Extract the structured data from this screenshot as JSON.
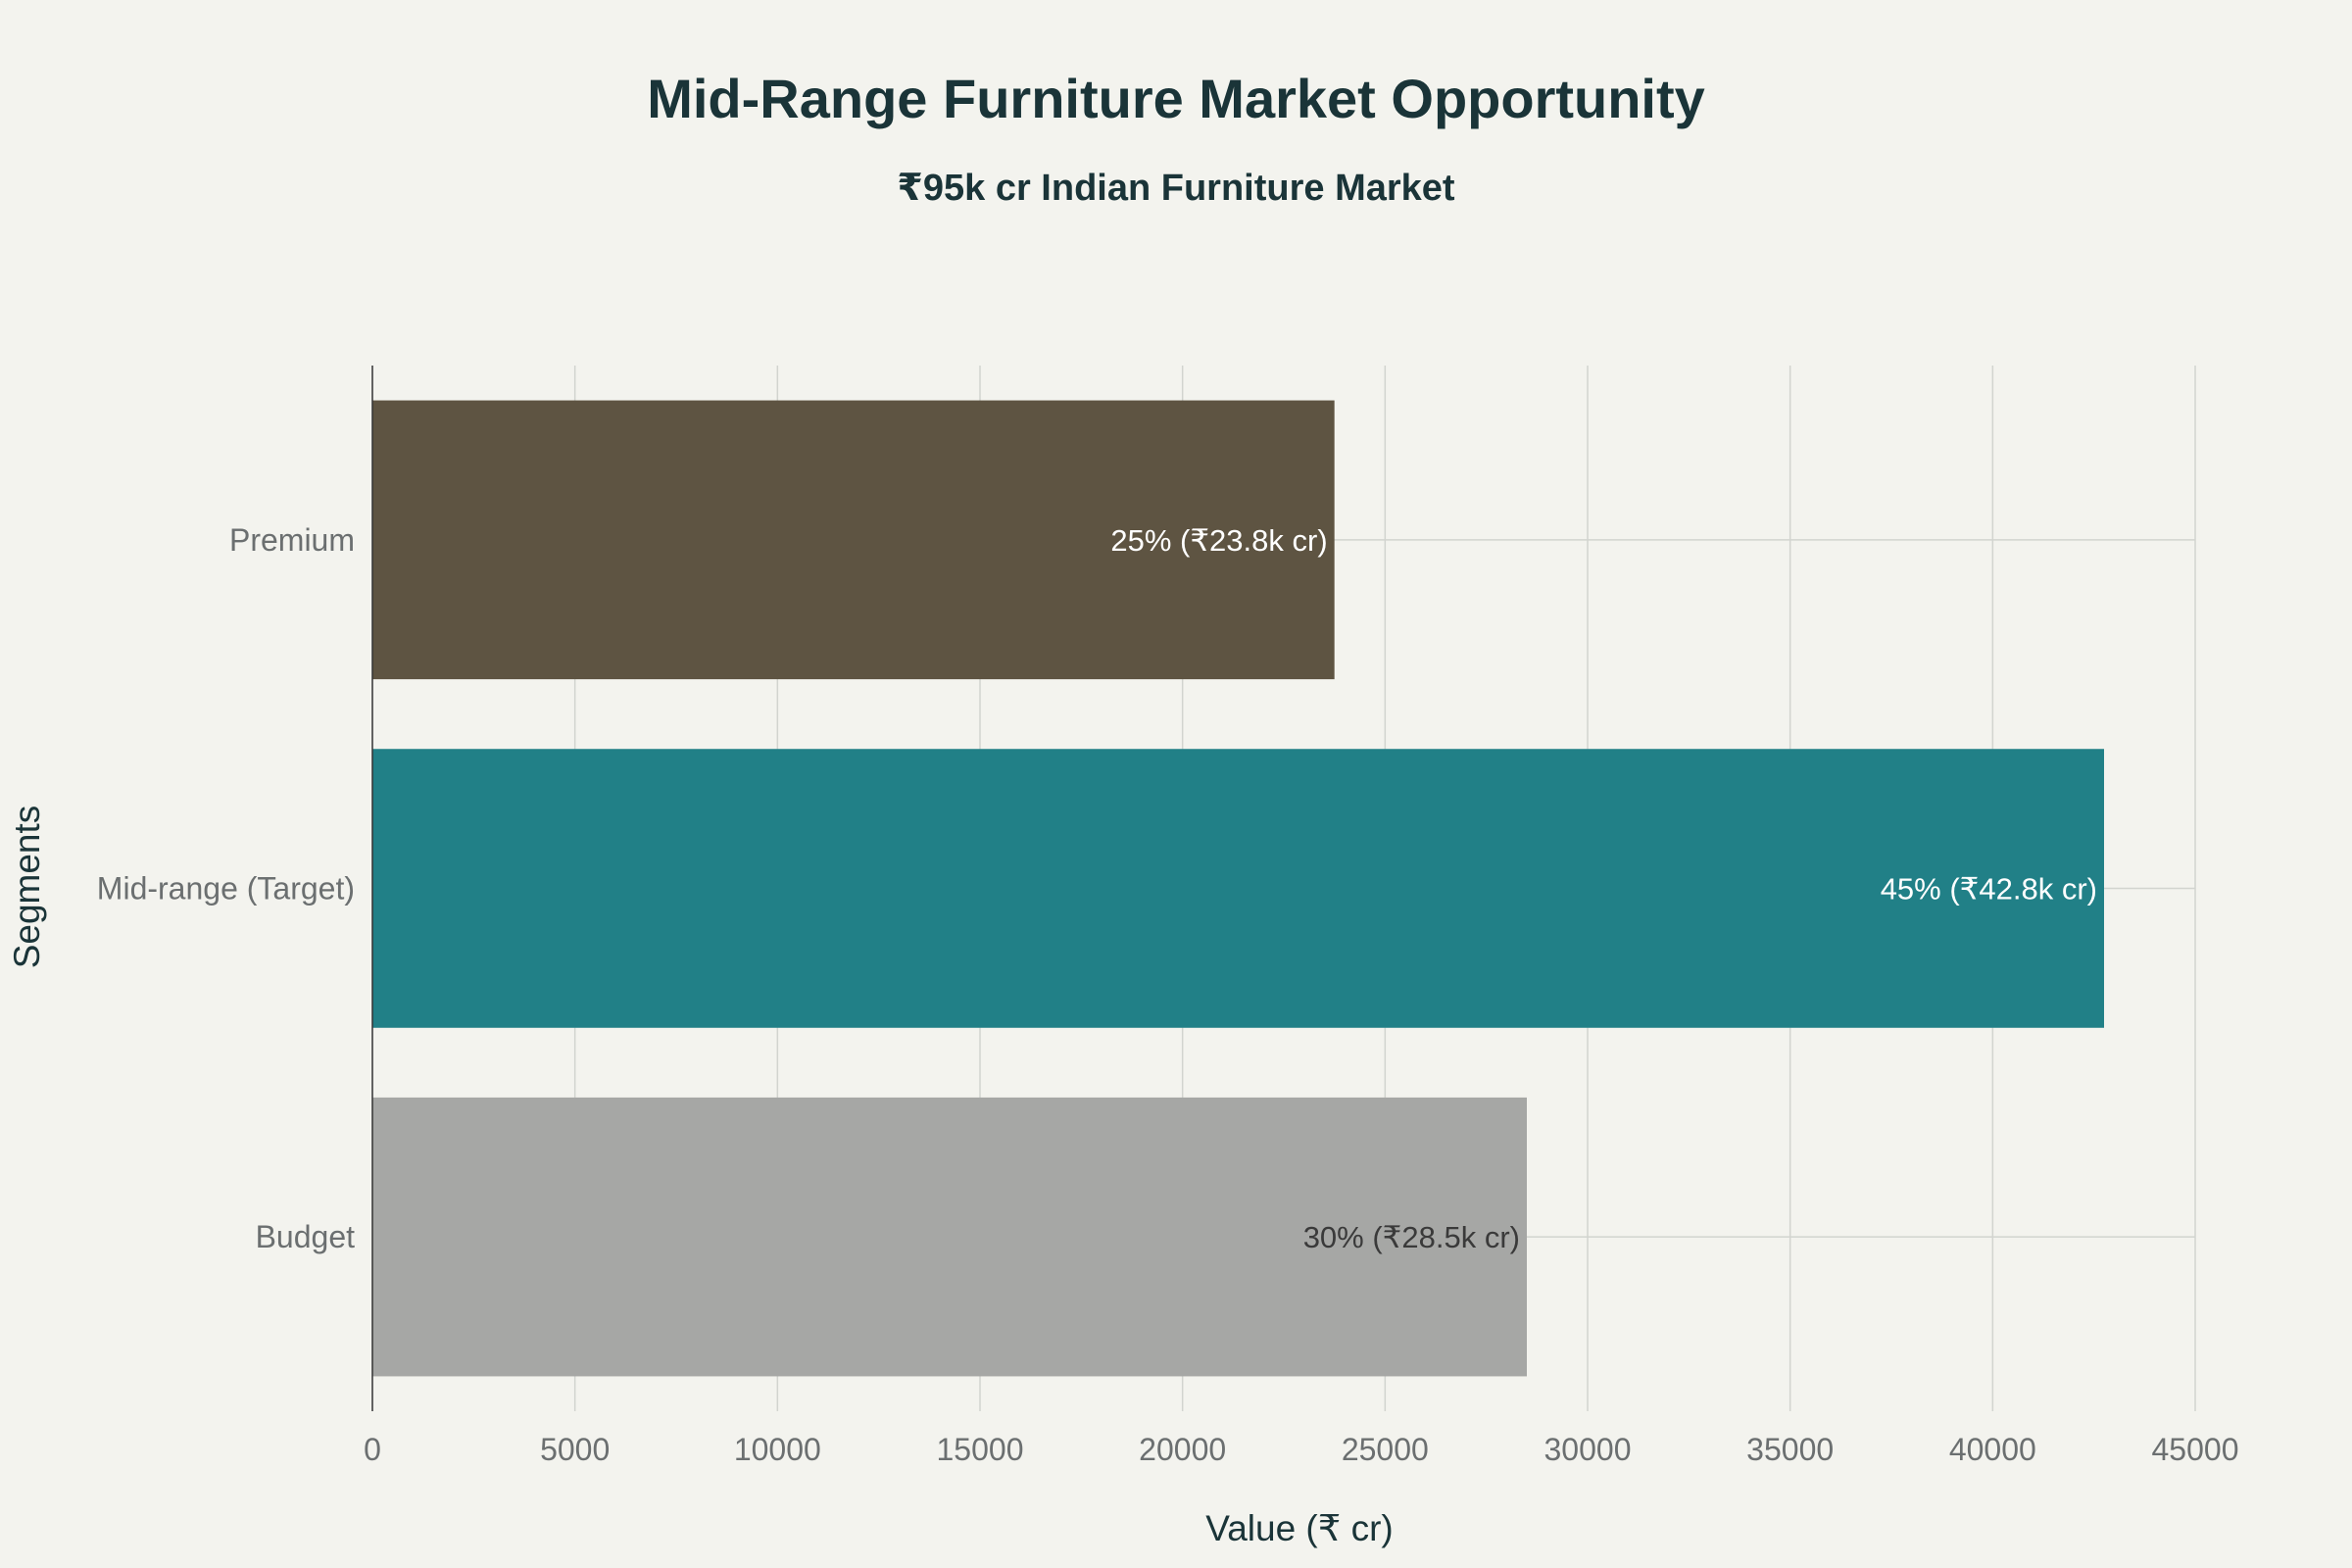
{
  "chart_data": {
    "type": "bar",
    "orientation": "horizontal",
    "title": "Mid-Range Furniture Market Opportunity",
    "subtitle": "₹95k cr Indian Furniture Market",
    "xlabel": "Value (₹ cr)",
    "ylabel": "Segments",
    "xlim": [
      0,
      45000
    ],
    "xticks": [
      0,
      5000,
      10000,
      15000,
      20000,
      25000,
      30000,
      35000,
      40000,
      45000
    ],
    "grid": true,
    "categories": [
      "Premium",
      "Mid-range (Target)",
      "Budget"
    ],
    "values": [
      23750,
      42750,
      28500
    ],
    "data_labels": [
      "25% (₹23.8k cr)",
      "45% (₹42.8k cr)",
      "30% (₹28.5k cr)"
    ],
    "colors": [
      "#5e5442",
      "#218087",
      "#a6a7a5"
    ],
    "label_colors": [
      "#ffffff",
      "#ffffff",
      "#3a3a3a"
    ]
  }
}
